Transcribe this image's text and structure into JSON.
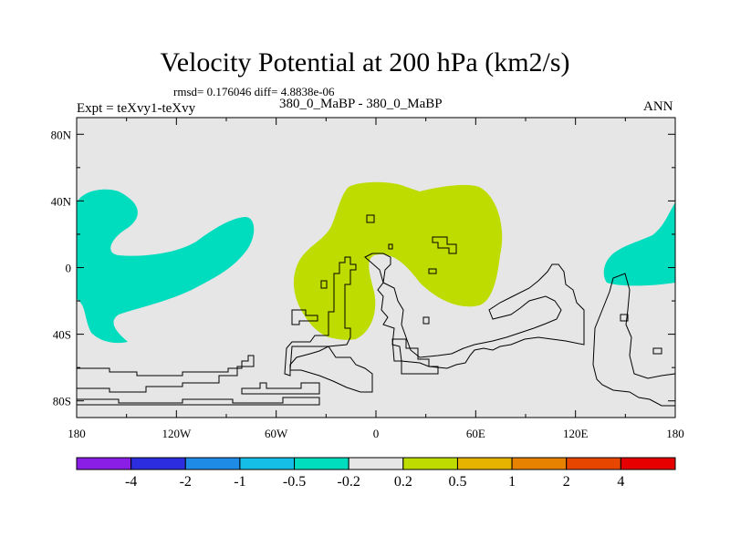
{
  "chart_data": {
    "type": "contour-map",
    "title": "Velocity Potential at 200 hPa (km2/s)",
    "stats_line": "rmsd= 0.176046 diff= 4.8838e-06",
    "left_string": "Expt = teXvy1-teXvy",
    "center_string": "380_0_MaBP - 380_0_MaBP",
    "right_string": "ANN",
    "x_ticks": [
      "180",
      "120W",
      "60W",
      "0",
      "60E",
      "120E",
      "180"
    ],
    "x_tick_degrees": [
      -180,
      -120,
      -60,
      0,
      60,
      120,
      180
    ],
    "y_ticks": [
      "80N",
      "40N",
      "0",
      "40S",
      "80S"
    ],
    "y_tick_degrees": [
      80,
      40,
      0,
      -40,
      -80
    ],
    "xlim": [
      -180,
      180
    ],
    "ylim": [
      -90,
      90
    ],
    "colorbar": {
      "labels": [
        "-4",
        "-2",
        "-1",
        "-0.5",
        "-0.2",
        "0.2",
        "0.5",
        "1",
        "2",
        "4"
      ],
      "colors": [
        "#8a1ee6",
        "#2d2de0",
        "#1e8ce6",
        "#14bee6",
        "#00dcbe",
        "#e6e6e6",
        "#bedc00",
        "#e6b400",
        "#e68200",
        "#e64600",
        "#e60000"
      ]
    },
    "regions": [
      {
        "name": "positive-0.2-to-0.5-Atlantic-Africa",
        "range": [
          0.2,
          0.5
        ],
        "approx_lon": [
          -47,
          80
        ],
        "approx_lat": [
          -42,
          50
        ]
      },
      {
        "name": "negative-0.5-to-0.2-NE-Pacific",
        "range": [
          -0.5,
          -0.2
        ],
        "approx_lon": [
          -180,
          -75
        ],
        "approx_lat": [
          -45,
          45
        ]
      },
      {
        "name": "negative-0.5-to-0.2-W-Pacific",
        "range": [
          -0.5,
          -0.2
        ],
        "approx_lon": [
          137,
          180
        ],
        "approx_lat": [
          -10,
          40
        ]
      }
    ]
  }
}
